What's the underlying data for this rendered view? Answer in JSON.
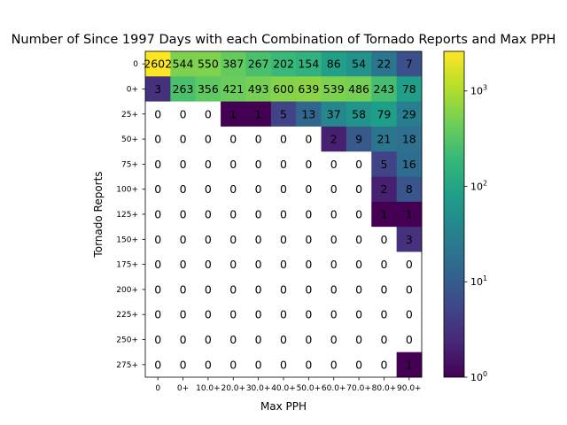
{
  "chart_data": {
    "type": "heatmap",
    "title": "Number of Since 1997 Days with each Combination of Tornado Reports and Max PPH",
    "xlabel": "Max PPH",
    "ylabel": "Tornado Reports",
    "x_categories": [
      "0",
      "0+",
      "10.0+",
      "20.0+",
      "30.0+",
      "40.0+",
      "50.0+",
      "60.0+",
      "70.0+",
      "80.0+",
      "90.0+"
    ],
    "y_categories": [
      "0",
      "0+",
      "25+",
      "50+",
      "75+",
      "100+",
      "125+",
      "150+",
      "175+",
      "200+",
      "225+",
      "250+",
      "275+"
    ],
    "values": [
      [
        2602,
        544,
        550,
        387,
        267,
        202,
        154,
        86,
        54,
        22,
        7
      ],
      [
        3,
        263,
        356,
        421,
        493,
        600,
        639,
        539,
        486,
        243,
        78
      ],
      [
        0,
        0,
        0,
        1,
        1,
        5,
        13,
        37,
        58,
        79,
        29
      ],
      [
        0,
        0,
        0,
        0,
        0,
        0,
        0,
        2,
        9,
        21,
        18
      ],
      [
        0,
        0,
        0,
        0,
        0,
        0,
        0,
        0,
        0,
        5,
        16
      ],
      [
        0,
        0,
        0,
        0,
        0,
        0,
        0,
        0,
        0,
        2,
        8
      ],
      [
        0,
        0,
        0,
        0,
        0,
        0,
        0,
        0,
        0,
        1,
        1
      ],
      [
        0,
        0,
        0,
        0,
        0,
        0,
        0,
        0,
        0,
        0,
        3
      ],
      [
        0,
        0,
        0,
        0,
        0,
        0,
        0,
        0,
        0,
        0,
        0
      ],
      [
        0,
        0,
        0,
        0,
        0,
        0,
        0,
        0,
        0,
        0,
        0
      ],
      [
        0,
        0,
        0,
        0,
        0,
        0,
        0,
        0,
        0,
        0,
        0
      ],
      [
        0,
        0,
        0,
        0,
        0,
        0,
        0,
        0,
        0,
        0,
        0
      ],
      [
        0,
        0,
        0,
        0,
        0,
        0,
        0,
        0,
        0,
        0,
        1
      ]
    ],
    "colorscale": "viridis",
    "color_scale_type": "log",
    "color_range": [
      1,
      2602
    ],
    "zero_color": "#ffffff",
    "colorbar_ticks": [
      {
        "value": 1,
        "base": "10",
        "exp": "0"
      },
      {
        "value": 10,
        "base": "10",
        "exp": "1"
      },
      {
        "value": 100,
        "base": "10",
        "exp": "2"
      },
      {
        "value": 1000,
        "base": "10",
        "exp": "3"
      }
    ]
  }
}
